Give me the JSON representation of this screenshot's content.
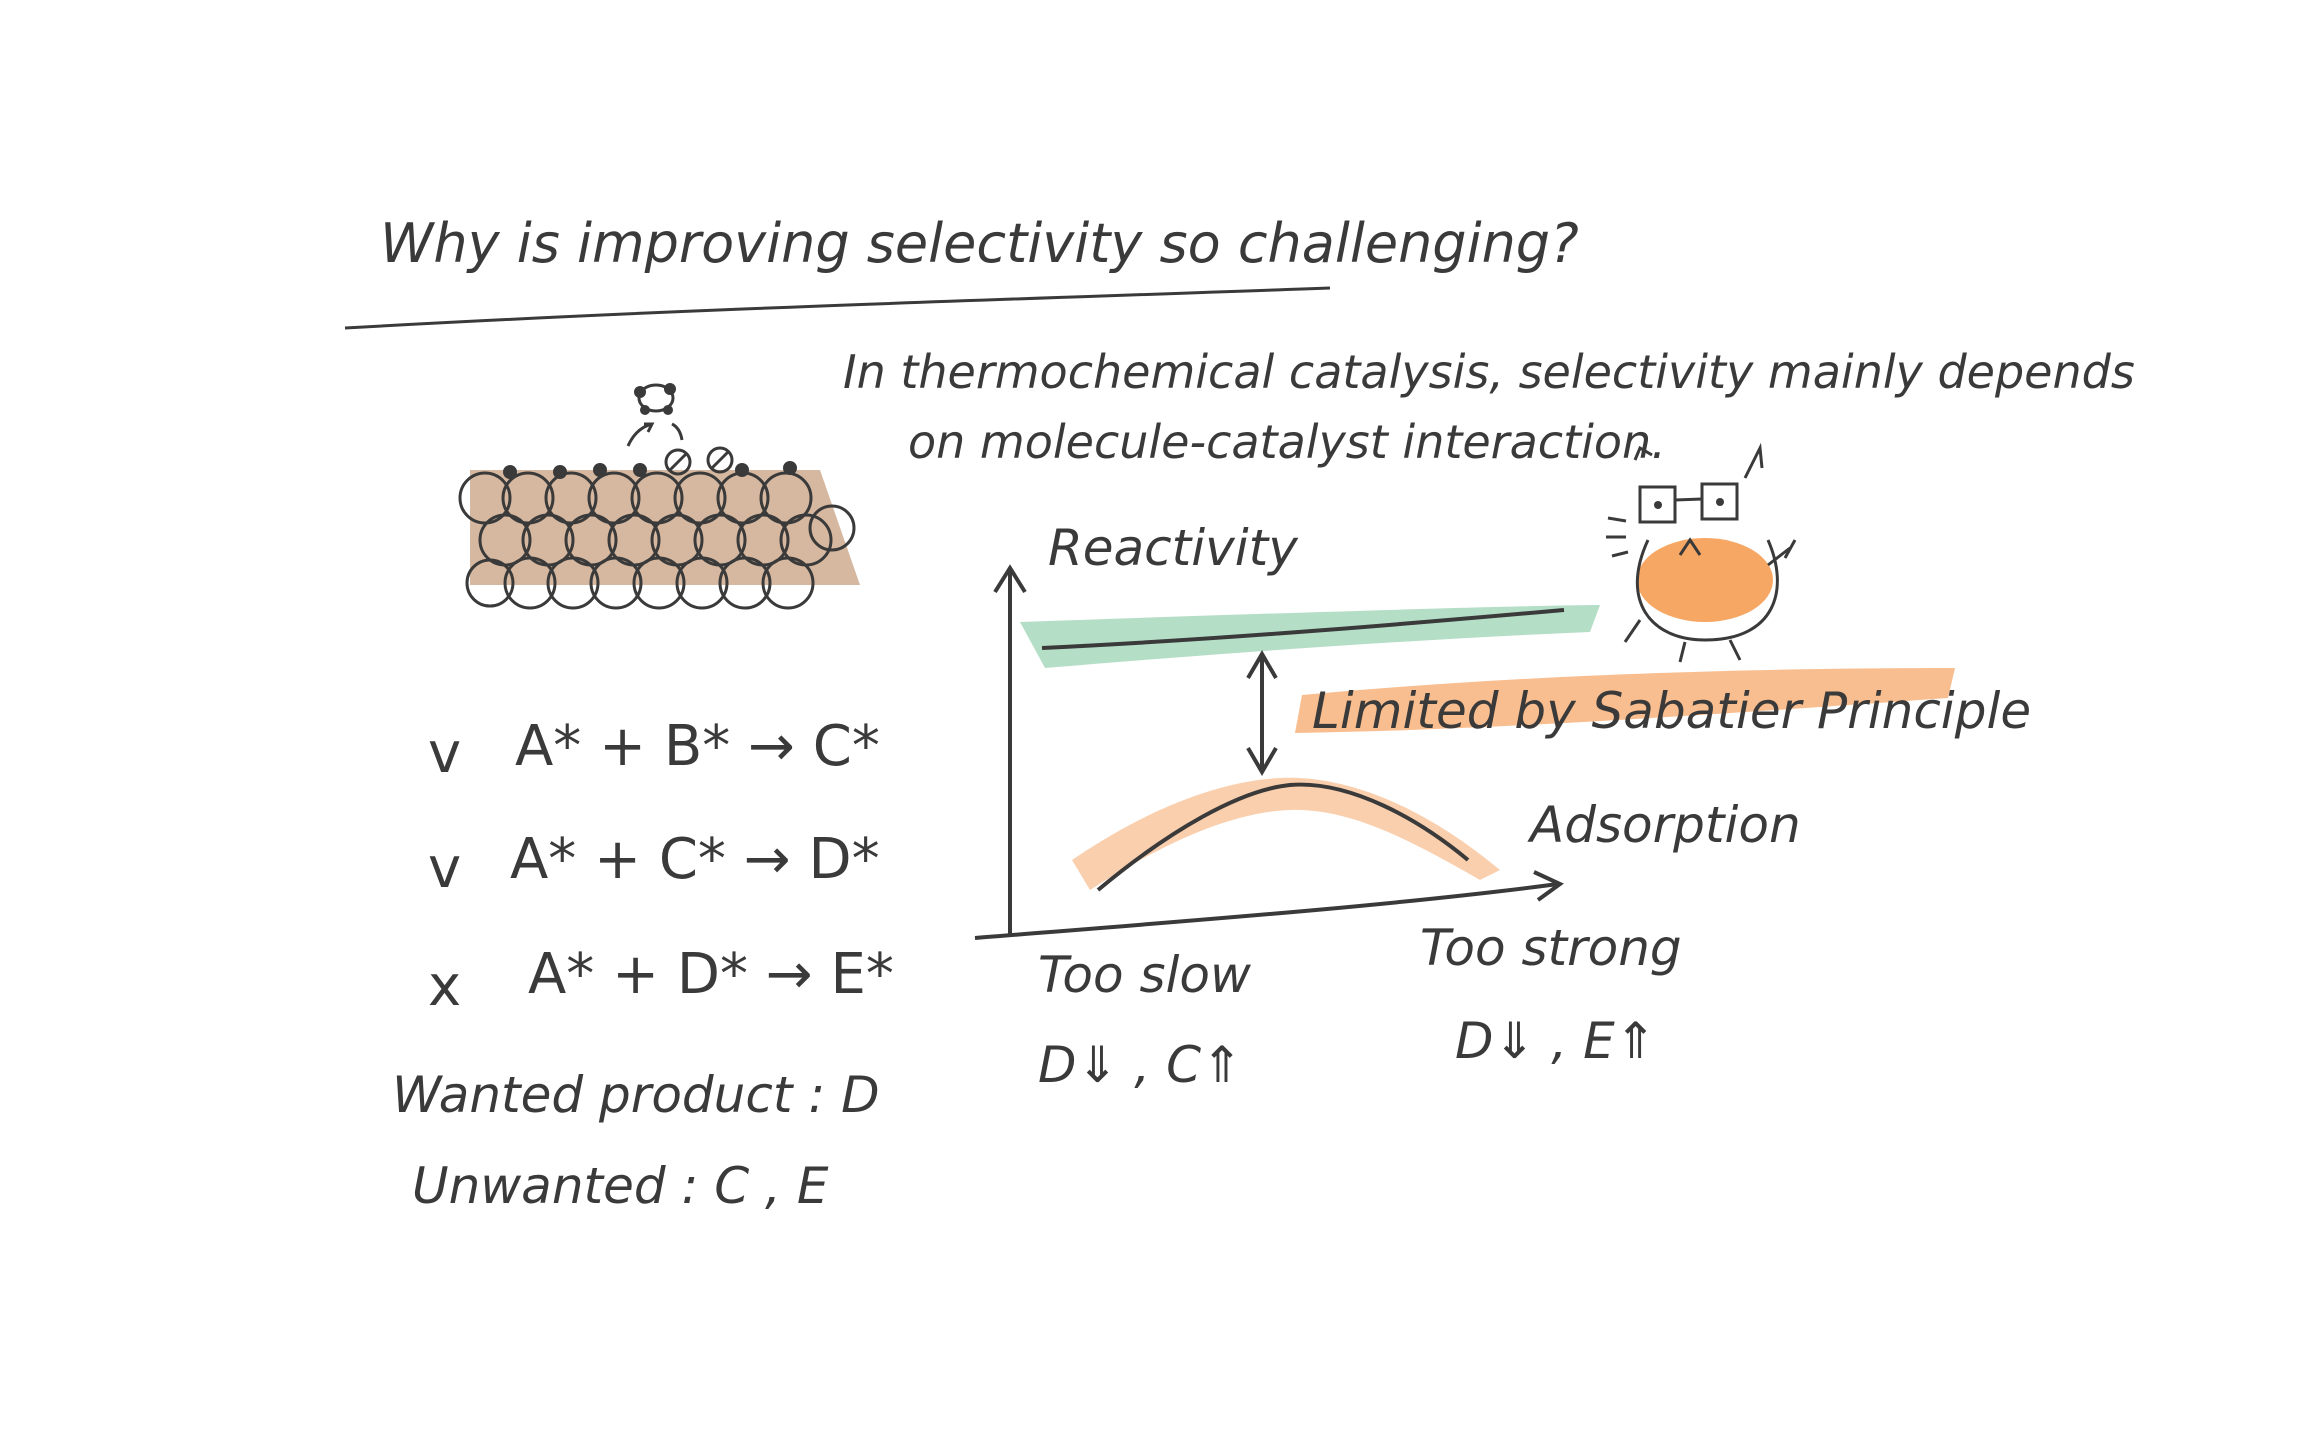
{
  "title": "Why is improving selectivity so challenging?",
  "intro": {
    "line1": "In thermochemical catalysis, selectivity mainly depends",
    "line2": "on molecule-catalyst interaction."
  },
  "reactions": [
    {
      "mark": "v",
      "text": "A* + B* → C*"
    },
    {
      "mark": "v",
      "text": "A* + C* → D*"
    },
    {
      "mark": "x",
      "text": "A* + D* → E*"
    }
  ],
  "products": {
    "wanted": "Wanted product : D",
    "unwanted": "Unwanted : C , E"
  },
  "graph": {
    "y_label": "Reactivity",
    "x_label": "Adsorption",
    "gap_label": "Limited by Sabatier Principle",
    "left_label": "Too slow",
    "left_effect": "D⇓ , C⇑",
    "right_label": "Too strong",
    "right_effect": "D⇓ , E⇑"
  },
  "colors": {
    "ink": "#3a3a3a",
    "green_highlight": "#a8d8bc",
    "orange_highlight": "#f6a86a",
    "surface_brown": "#c8a080",
    "mascot_orange": "#f48a30"
  }
}
